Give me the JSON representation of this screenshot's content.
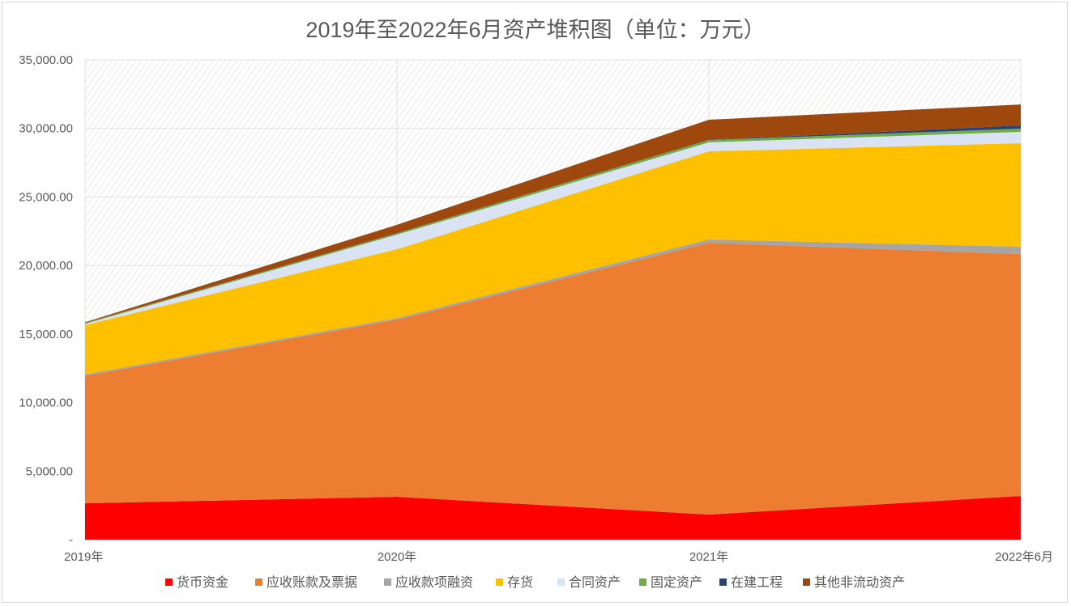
{
  "chart_data": {
    "type": "area",
    "stacked": true,
    "title": "2019年至2022年6月资产堆积图（单位：万元）",
    "categories": [
      "2019年",
      "2020年",
      "2021年",
      "2022年6月"
    ],
    "ylim": [
      0,
      35000
    ],
    "yticks": [
      0,
      5000,
      10000,
      15000,
      20000,
      25000,
      30000,
      35000
    ],
    "ytick_labels": [
      "-",
      "5,000.00",
      "10,000.00",
      "15,000.00",
      "20,000.00",
      "25,000.00",
      "30,000.00",
      "35,000.00"
    ],
    "grid": true,
    "legend_position": "bottom",
    "plot_background": "hatched",
    "series": [
      {
        "name": "货币资金",
        "color": "#ff0000",
        "values": [
          2650,
          3130,
          1830,
          3190
        ]
      },
      {
        "name": "应收账款及票据",
        "color": "#ed7d31",
        "values": [
          9300,
          12920,
          19830,
          17640
        ]
      },
      {
        "name": "应收款项融资",
        "color": "#a5a5a5",
        "values": [
          110,
          120,
          240,
          540
        ]
      },
      {
        "name": "存货",
        "color": "#ffc000",
        "values": [
          3600,
          5020,
          6430,
          7550
        ]
      },
      {
        "name": "合同资产",
        "color": "#dae3f3",
        "values": [
          80,
          1060,
          650,
          830
        ]
      },
      {
        "name": "固定资产",
        "color": "#70ad47",
        "values": [
          60,
          100,
          170,
          230
        ]
      },
      {
        "name": "在建工程",
        "color": "#264478",
        "values": [
          10,
          20,
          20,
          240
        ]
      },
      {
        "name": "其他非流动资产",
        "color": "#9e480e",
        "values": [
          50,
          600,
          1460,
          1530
        ]
      }
    ]
  }
}
